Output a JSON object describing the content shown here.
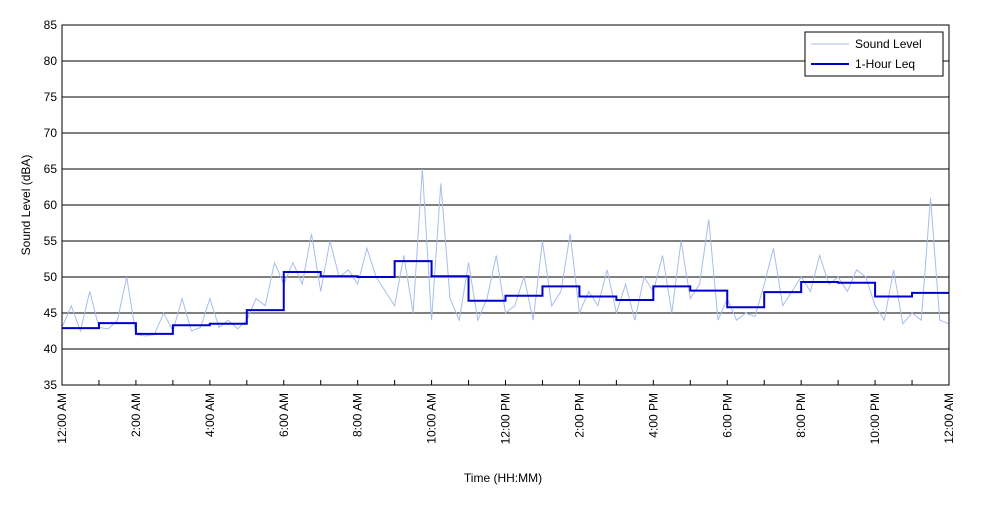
{
  "chart_data": {
    "type": "line",
    "x_label": "Time (HH:MM)",
    "y_label": "Sound Level (dBA)",
    "xlim": [
      0,
      24
    ],
    "ylim": [
      35,
      85
    ],
    "yticks": [
      35,
      40,
      45,
      50,
      55,
      60,
      65,
      70,
      75,
      80,
      85
    ],
    "xticks": [
      {
        "value": 0,
        "label": "12:00 AM"
      },
      {
        "value": 2,
        "label": "2:00 AM"
      },
      {
        "value": 4,
        "label": "4:00 AM"
      },
      {
        "value": 6,
        "label": "6:00 AM"
      },
      {
        "value": 8,
        "label": "8:00 AM"
      },
      {
        "value": 10,
        "label": "10:00 AM"
      },
      {
        "value": 12,
        "label": "12:00 PM"
      },
      {
        "value": 14,
        "label": "2:00 PM"
      },
      {
        "value": 16,
        "label": "4:00 PM"
      },
      {
        "value": 18,
        "label": "6:00 PM"
      },
      {
        "value": 20,
        "label": "8:00 PM"
      },
      {
        "value": 22,
        "label": "10:00 PM"
      },
      {
        "value": 24,
        "label": "12:00 AM"
      }
    ],
    "xminorticks": [
      1,
      3,
      5,
      7,
      9,
      11,
      13,
      15,
      17,
      19,
      21,
      23
    ],
    "grid": "y",
    "legend": "upper right",
    "series": [
      {
        "name": "Sound Level",
        "color": "#a6bdf0",
        "step": false,
        "x": [
          0,
          0.25,
          0.5,
          0.75,
          1,
          1.25,
          1.5,
          1.75,
          2,
          2.25,
          2.5,
          2.75,
          3,
          3.25,
          3.5,
          3.75,
          4,
          4.25,
          4.5,
          4.75,
          5,
          5.25,
          5.5,
          5.75,
          6,
          6.25,
          6.5,
          6.75,
          7,
          7.25,
          7.5,
          7.75,
          8,
          8.25,
          8.5,
          8.75,
          9,
          9.25,
          9.5,
          9.75,
          10,
          10.25,
          10.5,
          10.75,
          11,
          11.25,
          11.5,
          11.75,
          12,
          12.25,
          12.5,
          12.75,
          13,
          13.25,
          13.5,
          13.75,
          14,
          14.25,
          14.5,
          14.75,
          15,
          15.25,
          15.5,
          15.75,
          16,
          16.25,
          16.5,
          16.75,
          17,
          17.25,
          17.5,
          17.75,
          18,
          18.25,
          18.5,
          18.75,
          19,
          19.25,
          19.5,
          19.75,
          20,
          20.25,
          20.5,
          20.75,
          21,
          21.25,
          21.5,
          21.75,
          22,
          22.25,
          22.5,
          22.75,
          23,
          23.25,
          23.5,
          23.75,
          24
        ],
        "values": [
          43,
          46,
          42.5,
          48,
          43,
          42.8,
          44,
          50,
          42,
          41.8,
          42,
          45,
          42.5,
          47,
          42.5,
          43,
          47,
          43,
          44,
          42.8,
          44,
          47,
          46,
          52,
          49,
          52,
          49,
          56,
          48,
          55,
          50,
          51,
          49,
          54,
          50,
          48,
          46,
          53,
          45,
          65,
          44,
          63,
          47,
          44,
          52,
          44,
          47,
          53,
          45,
          46,
          50,
          44,
          55,
          46,
          48,
          56,
          45,
          48,
          46,
          51,
          45,
          49,
          44,
          50,
          48,
          53,
          45,
          55,
          47,
          49,
          58,
          44,
          47,
          44,
          45,
          44.5,
          49,
          54,
          46,
          48,
          50,
          48,
          53,
          49,
          50,
          48,
          51,
          50,
          46,
          44,
          51,
          43.5,
          45,
          44,
          61,
          44,
          43.5
        ]
      },
      {
        "name": "1-Hour Leq",
        "color": "#0000cc",
        "step": true,
        "x": [
          0,
          1,
          2,
          3,
          4,
          5,
          6,
          7,
          8,
          9,
          10,
          11,
          12,
          13,
          14,
          15,
          16,
          17,
          18,
          19,
          20,
          21,
          22,
          23
        ],
        "values": [
          42.9,
          43.6,
          42.1,
          43.3,
          43.5,
          45.4,
          50.7,
          50.1,
          50.0,
          52.2,
          50.1,
          46.7,
          47.4,
          48.7,
          47.3,
          46.8,
          48.7,
          48.1,
          45.8,
          47.9,
          49.3,
          49.2,
          47.3,
          47.8
        ]
      }
    ]
  }
}
